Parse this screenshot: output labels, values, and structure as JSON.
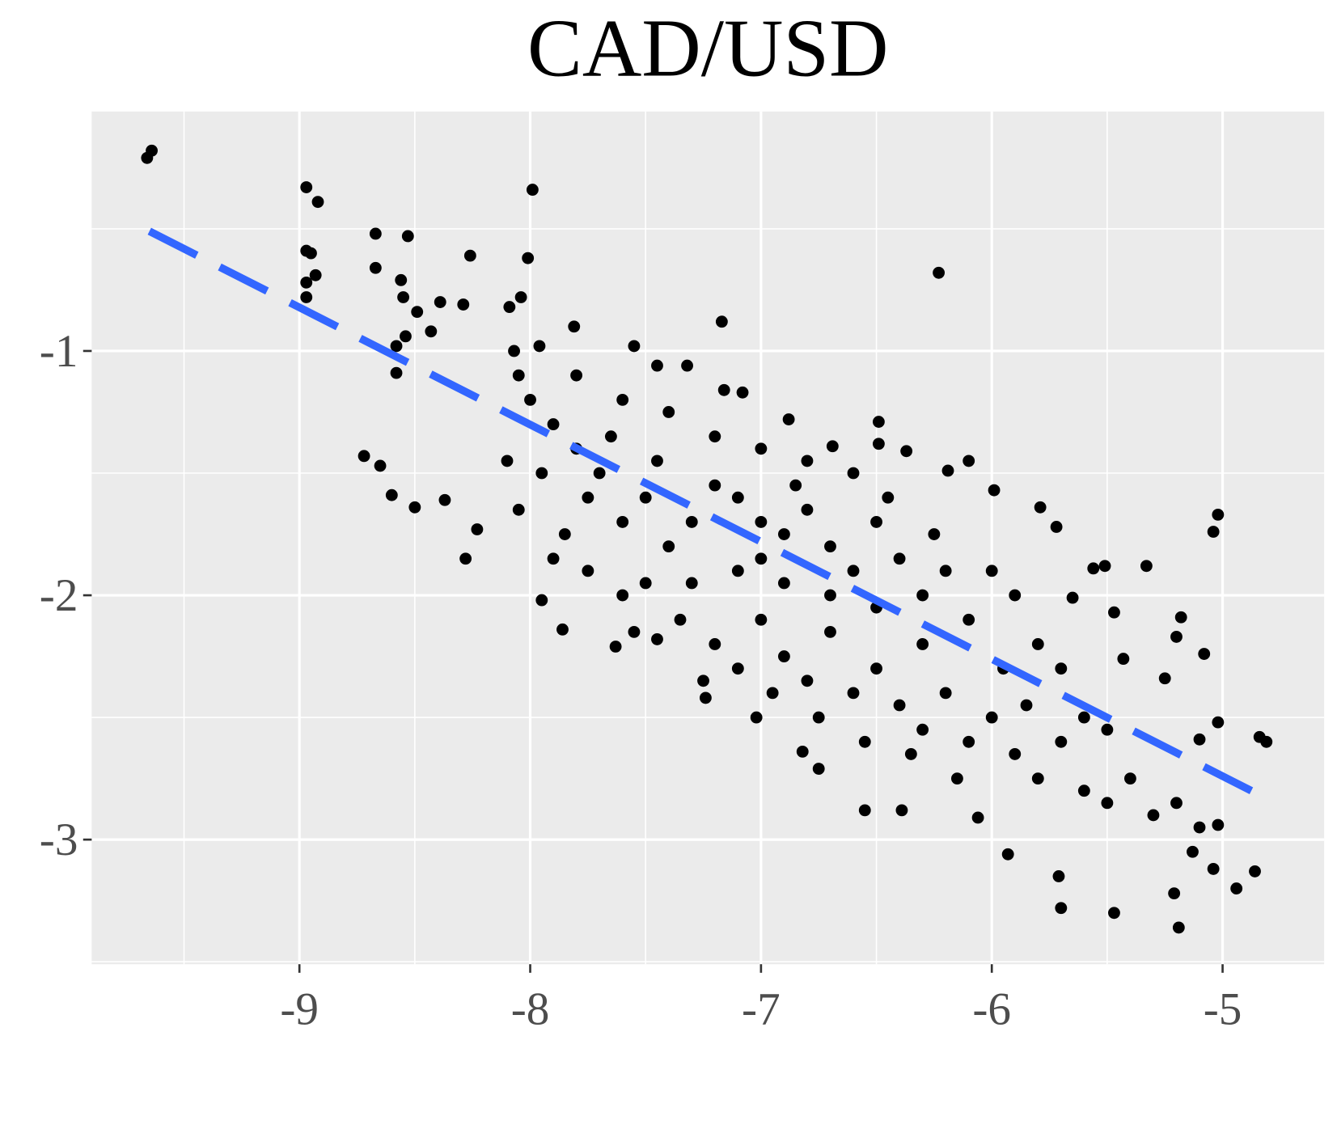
{
  "chart_data": {
    "type": "scatter",
    "title": "CAD/USD",
    "xlim": [
      -9.9,
      -4.56
    ],
    "ylim": [
      -3.51,
      -0.02
    ],
    "xticks": [
      -9,
      -8,
      -7,
      -6,
      -5
    ],
    "yticks": [
      -3,
      -2,
      -1
    ],
    "xminor": [
      -9.5,
      -8.5,
      -7.5,
      -6.5,
      -5.5
    ],
    "yminor": [
      -3.5,
      -2.5,
      -1.5,
      -0.5
    ],
    "grid": true,
    "series": [
      {
        "color": "#000000",
        "x": [
          -9.66,
          -9.64,
          -8.97,
          -8.92,
          -8.97,
          -8.95,
          -8.97,
          -8.93,
          -8.97,
          -7.99,
          -8.67,
          -8.67,
          -8.53,
          -8.56,
          -8.55,
          -8.49,
          -8.26,
          -8.01,
          -8.58,
          -8.58,
          -8.54,
          -8.39,
          -8.29,
          -8.43,
          -6.23,
          -7.17,
          -8.72,
          -8.65,
          -8.6,
          -8.5,
          -8.37,
          -8.28,
          -8.23,
          -7.95,
          -7.86,
          -7.63,
          -7.45,
          -7.24,
          -7.02,
          -6.82,
          -6.75,
          -6.55,
          -6.39,
          -6.06,
          -5.93,
          -5.7,
          -5.71,
          -5.47,
          -5.19,
          -5.21,
          -4.94,
          -4.86,
          -4.81,
          -4.84,
          -5.02,
          -5.04,
          -5.33,
          -5.51,
          -5.56,
          -5.18,
          -5.2,
          -5.08,
          -5.25,
          -5.47,
          -5.43,
          -5.1,
          -5.02,
          -5.13,
          -5.04,
          -5.02,
          -5.65,
          -5.72,
          -5.79,
          -5.99,
          -6.1,
          -6.19,
          -6.37,
          -6.49,
          -6.49,
          -6.69,
          -6.88,
          -7.08,
          -7.16,
          -7.32,
          -7.45,
          -7.55,
          -7.81,
          -8.04,
          -8.09,
          -7.96,
          -8.07,
          -7.2,
          -7.1,
          -7.0,
          -6.9,
          -6.8,
          -6.7,
          -6.6,
          -6.5,
          -6.4,
          -6.3,
          -7.3,
          -7.4,
          -7.5,
          -7.6,
          -7.7,
          -7.8,
          -7.9,
          -8.0,
          -8.05,
          -7.95,
          -7.85,
          -7.75,
          -7.6,
          -7.5,
          -7.35,
          -7.2,
          -7.1,
          -7.0,
          -6.9,
          -6.8,
          -6.7,
          -6.6,
          -6.5,
          -6.4,
          -6.3,
          -6.2,
          -6.1,
          -6.0,
          -5.9,
          -5.8,
          -5.7,
          -5.6,
          -5.5,
          -5.4,
          -5.3,
          -5.2,
          -5.1,
          -6.2,
          -6.1,
          -6.0,
          -5.9,
          -5.8,
          -5.7,
          -5.6,
          -5.5,
          -6.6,
          -6.8,
          -7.0,
          -7.2,
          -7.4,
          -7.6,
          -7.8,
          -6.9,
          -7.1,
          -7.3,
          -6.5,
          -6.3,
          -6.7,
          -7.0,
          -6.85,
          -6.95,
          -6.45,
          -6.25,
          -7.45,
          -7.65,
          -5.95,
          -5.85,
          -6.15,
          -6.35,
          -6.55,
          -6.75,
          -7.25,
          -7.55,
          -7.75,
          -8.1,
          -8.05,
          -7.9
        ],
        "values": [
          -0.21,
          -0.18,
          -0.33,
          -0.39,
          -0.59,
          -0.6,
          -0.72,
          -0.69,
          -0.78,
          -0.34,
          -0.52,
          -0.66,
          -0.53,
          -0.71,
          -0.78,
          -0.84,
          -0.61,
          -0.62,
          -1.09,
          -0.98,
          -0.94,
          -0.8,
          -0.81,
          -0.92,
          -0.68,
          -0.88,
          -1.43,
          -1.47,
          -1.59,
          -1.64,
          -1.61,
          -1.85,
          -1.73,
          -2.02,
          -2.14,
          -2.21,
          -2.18,
          -2.42,
          -2.5,
          -2.64,
          -2.71,
          -2.88,
          -2.88,
          -2.91,
          -3.06,
          -3.28,
          -3.15,
          -3.3,
          -3.36,
          -3.22,
          -3.2,
          -3.13,
          -2.6,
          -2.58,
          -1.67,
          -1.74,
          -1.88,
          -1.88,
          -1.89,
          -2.09,
          -2.17,
          -2.24,
          -2.34,
          -2.07,
          -2.26,
          -2.59,
          -2.52,
          -3.05,
          -3.12,
          -2.94,
          -2.01,
          -1.72,
          -1.64,
          -1.57,
          -1.45,
          -1.49,
          -1.41,
          -1.29,
          -1.38,
          -1.39,
          -1.28,
          -1.17,
          -1.16,
          -1.06,
          -1.06,
          -0.98,
          -0.9,
          -0.78,
          -0.82,
          -0.98,
          -1.0,
          -1.55,
          -1.6,
          -1.7,
          -1.75,
          -1.65,
          -1.8,
          -1.9,
          -1.7,
          -1.85,
          -2.0,
          -1.7,
          -1.8,
          -1.6,
          -1.7,
          -1.5,
          -1.4,
          -1.3,
          -1.2,
          -1.1,
          -1.5,
          -1.75,
          -1.9,
          -2.0,
          -1.95,
          -2.1,
          -2.2,
          -2.3,
          -2.1,
          -2.25,
          -2.35,
          -2.15,
          -2.4,
          -2.3,
          -2.45,
          -2.55,
          -2.4,
          -2.6,
          -2.5,
          -2.65,
          -2.75,
          -2.6,
          -2.8,
          -2.85,
          -2.75,
          -2.9,
          -2.85,
          -2.95,
          -1.9,
          -2.1,
          -1.9,
          -2.0,
          -2.2,
          -2.3,
          -2.5,
          -2.55,
          -1.5,
          -1.45,
          -1.4,
          -1.35,
          -1.25,
          -1.2,
          -1.1,
          -1.95,
          -1.9,
          -1.95,
          -2.05,
          -2.2,
          -2.0,
          -1.85,
          -1.55,
          -2.4,
          -1.6,
          -1.75,
          -1.45,
          -1.35,
          -2.3,
          -2.45,
          -2.75,
          -2.65,
          -2.6,
          -2.5,
          -2.35,
          -2.15,
          -1.6,
          -1.45,
          -1.65,
          -1.85
        ]
      },
      {
        "color": "#3366ff",
        "kind": "line",
        "dashed": true,
        "x": [
          -9.65,
          -4.855
        ],
        "values": [
          -0.51,
          -2.81
        ]
      }
    ]
  }
}
